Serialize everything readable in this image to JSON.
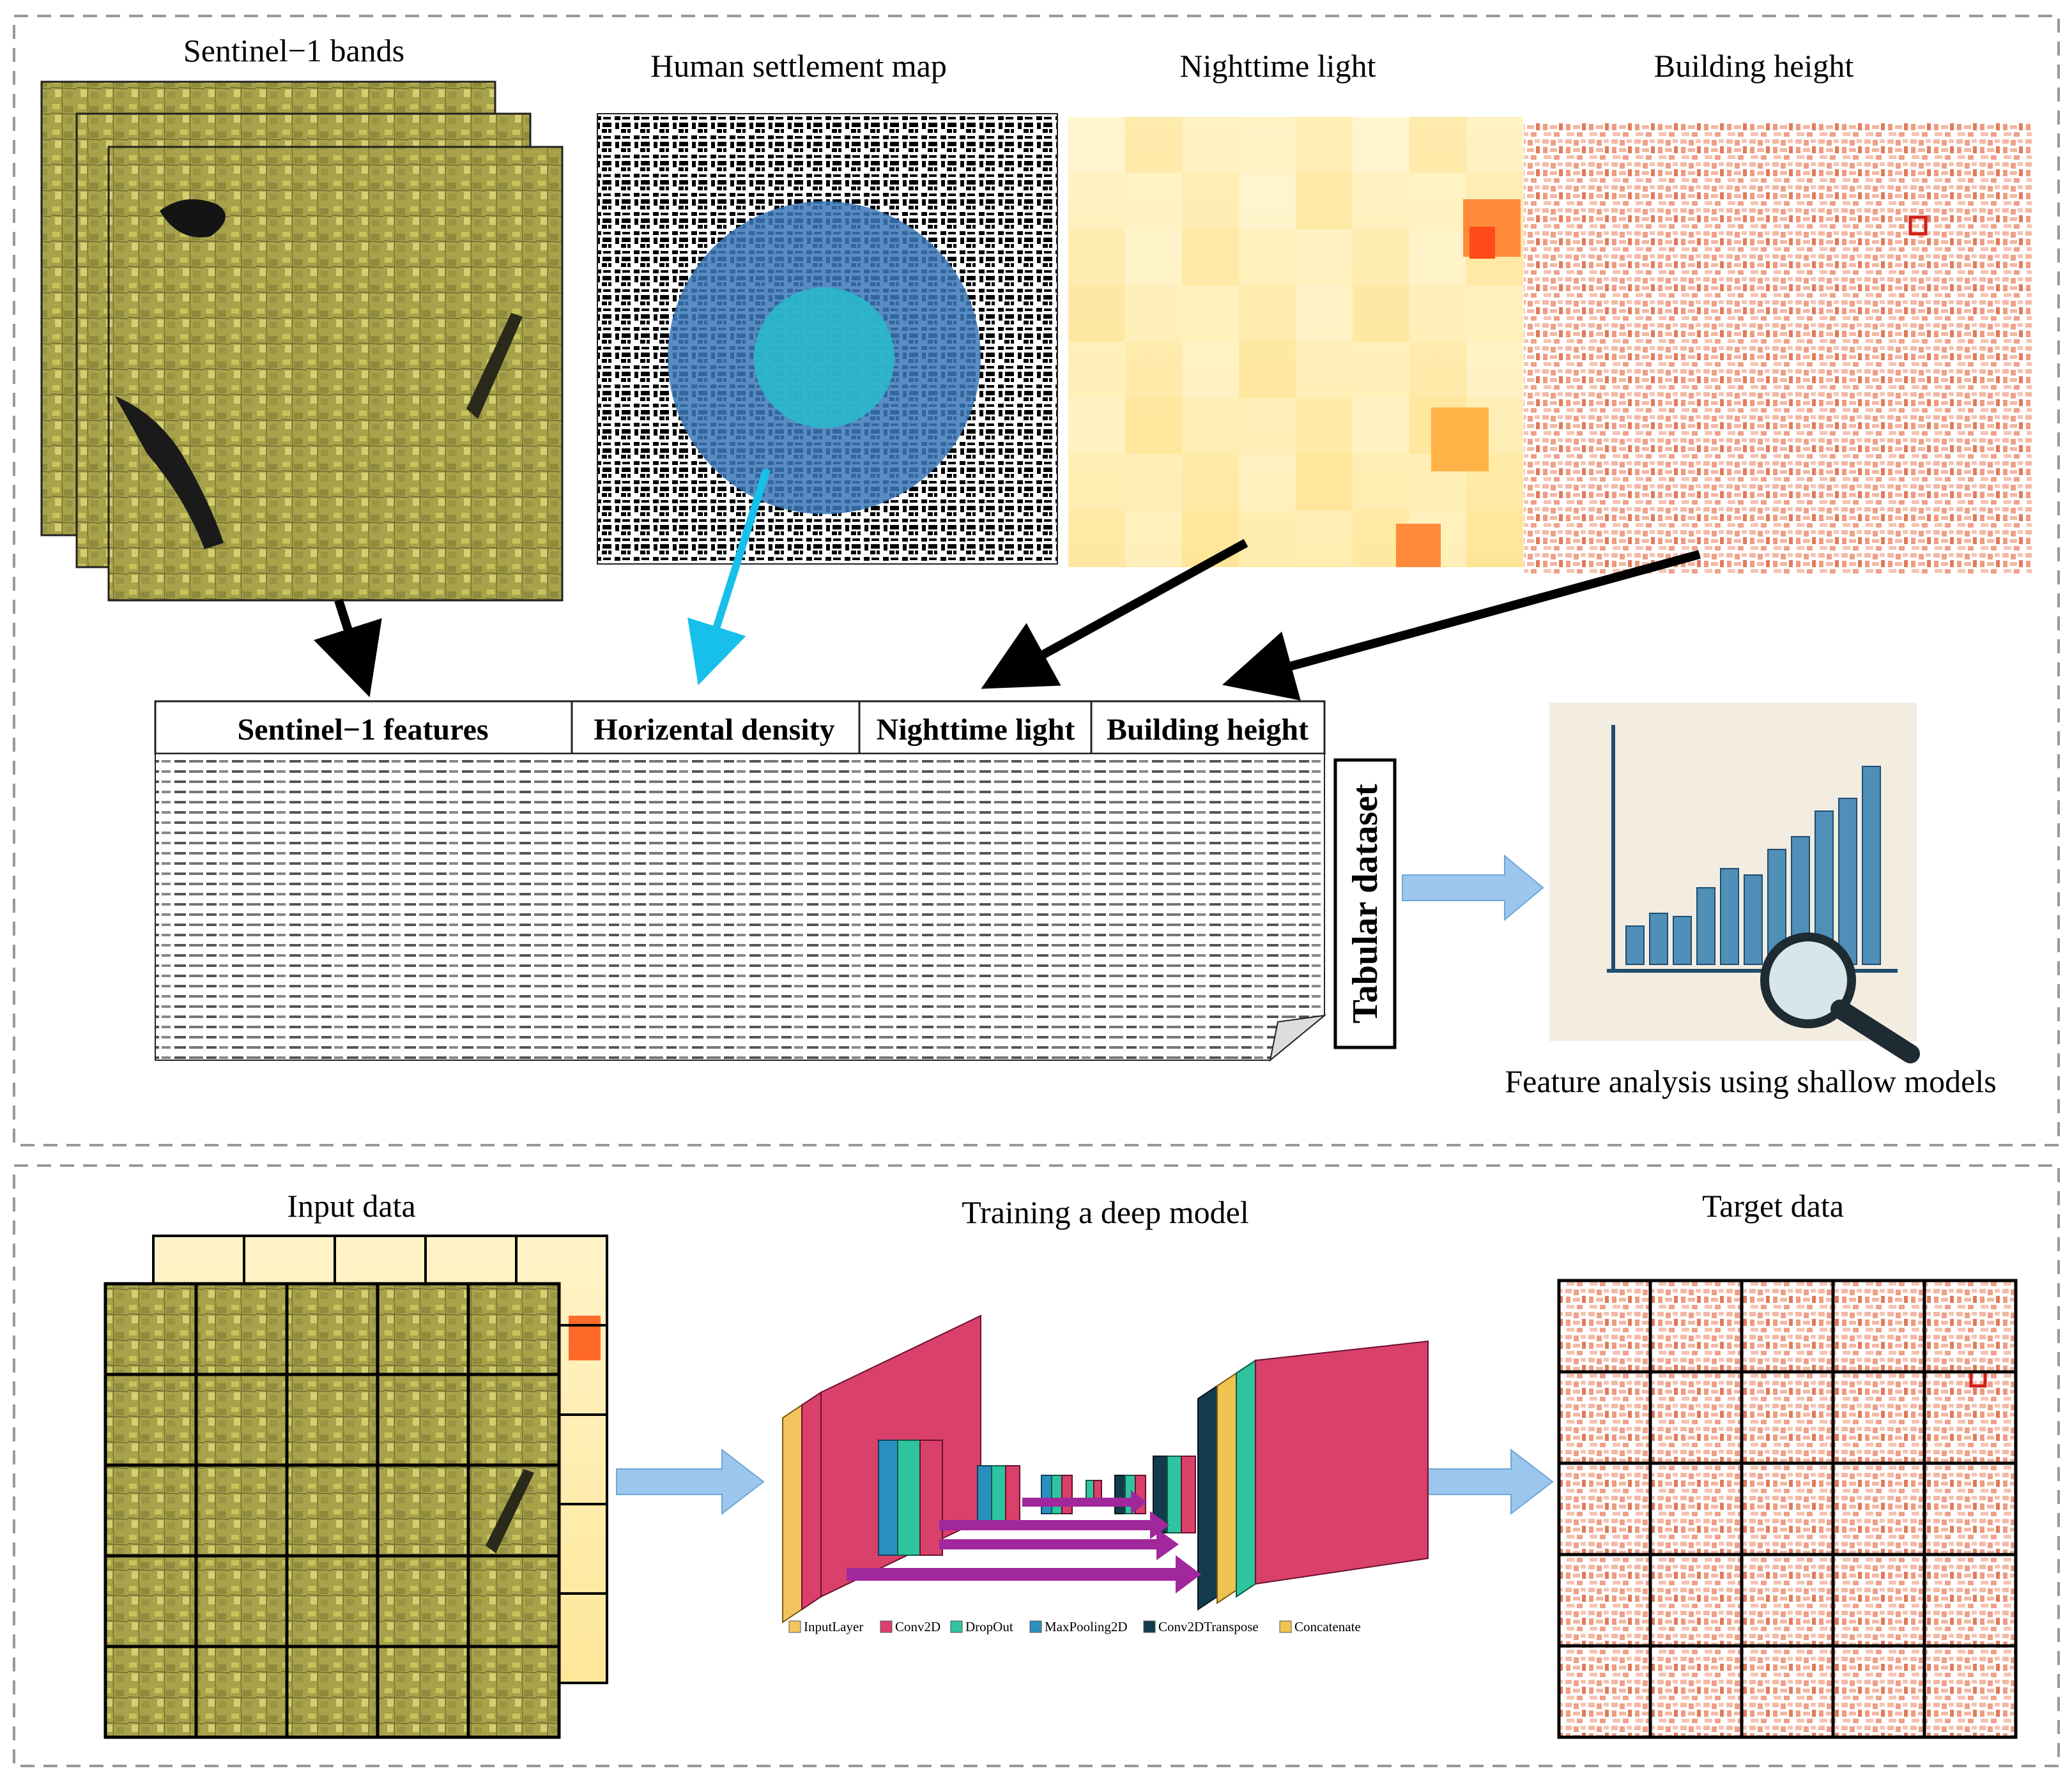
{
  "top_panel": {
    "sources": {
      "sentinel": "Sentinel−1 bands",
      "settlement": "Human settlement map",
      "nightlight": "Nighttime light",
      "building": "Building height"
    },
    "table_headers": {
      "sentinel": "Sentinel−1 features",
      "density": "Horizental density",
      "nightlight": "Nighttime light",
      "building": "Building height"
    },
    "tabular_label": "Tabular dataset",
    "analysis_caption": "Feature analysis using shallow models"
  },
  "bottom_panel": {
    "input_label": "Input data",
    "model_label": "Training a deep model",
    "target_label": "Target data",
    "legend": [
      {
        "label": "InputLayer",
        "color": "#f2c45f"
      },
      {
        "label": "Conv2D",
        "color": "#d9406a"
      },
      {
        "label": "DropOut",
        "color": "#2ec4a0"
      },
      {
        "label": "MaxPooling2D",
        "color": "#2a8fbf"
      },
      {
        "label": "Conv2DTranspose",
        "color": "#123c4d"
      },
      {
        "label": "Concatenate",
        "color": "#f0c24f"
      }
    ]
  },
  "colors": {
    "sentinel": "#a8a24a",
    "settlement_outer": "#3b78b8",
    "settlement_inner": "#2ab8cc",
    "nightlight": "#ffe9a8",
    "nightlight_hot": "#ff5a1f",
    "building": "#e86a4a",
    "flow_arrow": "#9cc6ee",
    "skip_arrow": "#a0289c",
    "cyan_arrow": "#17c0ea"
  }
}
